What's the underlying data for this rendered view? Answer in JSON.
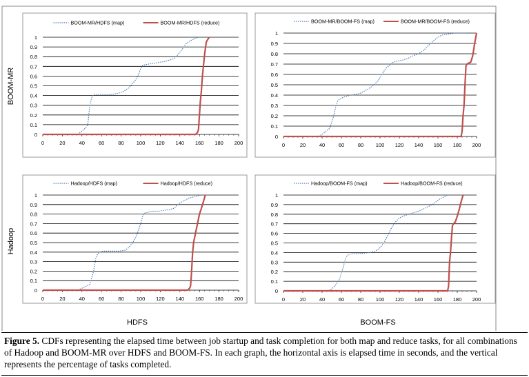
{
  "row_labels": [
    "BOOM-MR",
    "Hadoop"
  ],
  "col_labels": [
    "HDFS",
    "BOOM-FS"
  ],
  "caption": {
    "label": "Figure 5.",
    "text": " CDFs representing the elapsed time between job startup and task completion for both map and reduce tasks, for all combinations of Hadoop and BOOM-MR over HDFS and BOOM-FS. In each graph, the horizontal axis is elapsed time in seconds, and the vertical represents the percentage of tasks completed."
  },
  "colors": {
    "map": "#4f81bd",
    "reduce": "#c0504d",
    "grid": "#000000"
  },
  "chart_data": [
    {
      "type": "line",
      "panel": "top-left",
      "x_ticks": [
        0,
        20,
        40,
        60,
        80,
        100,
        120,
        140,
        160,
        180,
        200
      ],
      "y_ticks": [
        "0",
        "0.1",
        "0.2",
        "0.3",
        "0.4",
        "0.5",
        "0.6",
        "0.7",
        "0.8",
        "0.9",
        "1"
      ],
      "xlim": [
        0,
        200
      ],
      "ylim": [
        0,
        1
      ],
      "series": [
        {
          "name": "BOOM-MR/HDFS (map)",
          "style": "dotted",
          "x": [
            0,
            36,
            38,
            42,
            44,
            46,
            48,
            50,
            52,
            56,
            60,
            70,
            76,
            82,
            88,
            94,
            98,
            100,
            102,
            106,
            112,
            118,
            124,
            128,
            134,
            138,
            142,
            146,
            150,
            154,
            156,
            160
          ],
          "y": [
            0,
            0,
            0.02,
            0.05,
            0.07,
            0.1,
            0.3,
            0.38,
            0.41,
            0.41,
            0.41,
            0.41,
            0.42,
            0.44,
            0.48,
            0.55,
            0.62,
            0.68,
            0.71,
            0.72,
            0.73,
            0.74,
            0.75,
            0.76,
            0.78,
            0.82,
            0.87,
            0.93,
            0.96,
            0.98,
            0.99,
            1.0
          ]
        },
        {
          "name": "BOOM-MR/HDFS (reduce)",
          "style": "solid",
          "x": [
            0,
            156,
            158,
            159,
            160,
            161,
            162,
            163,
            164,
            165,
            166,
            167,
            168,
            170
          ],
          "y": [
            0,
            0,
            0.02,
            0.05,
            0.2,
            0.35,
            0.45,
            0.6,
            0.7,
            0.8,
            0.88,
            0.95,
            0.97,
            1.0
          ]
        }
      ]
    },
    {
      "type": "line",
      "panel": "top-right",
      "x_ticks": [
        0,
        20,
        40,
        60,
        80,
        100,
        120,
        140,
        160,
        180,
        200
      ],
      "y_ticks": [
        "0",
        "0.1",
        "0.2",
        "0.3",
        "0.4",
        "0.5",
        "0.6",
        "0.7",
        "0.8",
        "0.9",
        "1"
      ],
      "xlim": [
        0,
        200
      ],
      "ylim": [
        0,
        1
      ],
      "series": [
        {
          "name": "BOOM-MR/BOOM-FS (map)",
          "style": "dotted",
          "x": [
            0,
            36,
            40,
            44,
            48,
            52,
            54,
            56,
            58,
            62,
            66,
            70,
            76,
            80,
            84,
            88,
            94,
            98,
            102,
            106,
            110,
            114,
            118,
            124,
            130,
            134,
            140,
            146,
            150,
            156,
            160,
            164,
            170,
            178,
            186,
            190
          ],
          "y": [
            0,
            0,
            0.02,
            0.05,
            0.08,
            0.2,
            0.28,
            0.34,
            0.36,
            0.38,
            0.39,
            0.4,
            0.41,
            0.42,
            0.44,
            0.46,
            0.5,
            0.54,
            0.6,
            0.66,
            0.69,
            0.72,
            0.73,
            0.74,
            0.76,
            0.78,
            0.8,
            0.84,
            0.88,
            0.93,
            0.96,
            0.98,
            0.99,
            1.0,
            1.0,
            1.0
          ]
        },
        {
          "name": "BOOM-MR/BOOM-FS (reduce)",
          "style": "solid",
          "x": [
            0,
            184,
            185,
            186,
            187,
            188,
            189,
            190,
            192,
            194,
            196,
            198,
            200
          ],
          "y": [
            0,
            0,
            0.05,
            0.2,
            0.3,
            0.5,
            0.68,
            0.7,
            0.71,
            0.72,
            0.78,
            0.9,
            1.0
          ]
        }
      ]
    },
    {
      "type": "line",
      "panel": "bottom-left",
      "x_ticks": [
        0,
        20,
        40,
        60,
        80,
        100,
        120,
        140,
        160,
        180,
        200
      ],
      "y_ticks": [
        "0",
        "0.1",
        "0.2",
        "0.3",
        "0.4",
        "0.5",
        "0.6",
        "0.7",
        "0.8",
        "0.9",
        "1"
      ],
      "xlim": [
        0,
        200
      ],
      "ylim": [
        0,
        1
      ],
      "series": [
        {
          "name": "Hadoop/HDFS (map)",
          "style": "dotted",
          "x": [
            0,
            36,
            40,
            44,
            48,
            52,
            54,
            56,
            58,
            62,
            70,
            78,
            84,
            88,
            92,
            96,
            100,
            102,
            104,
            108,
            112,
            118,
            124,
            130,
            134,
            138,
            142,
            146,
            150,
            154,
            158,
            162
          ],
          "y": [
            0,
            0,
            0.02,
            0.04,
            0.06,
            0.2,
            0.33,
            0.38,
            0.4,
            0.41,
            0.41,
            0.41,
            0.42,
            0.45,
            0.5,
            0.58,
            0.7,
            0.78,
            0.81,
            0.82,
            0.83,
            0.83,
            0.84,
            0.85,
            0.86,
            0.9,
            0.93,
            0.95,
            0.97,
            0.98,
            0.99,
            1.0
          ]
        },
        {
          "name": "Hadoop/HDFS (reduce)",
          "style": "solid",
          "x": [
            0,
            148,
            150,
            151,
            152,
            153,
            154,
            156,
            158,
            160,
            162,
            164,
            166
          ],
          "y": [
            0,
            0,
            0.02,
            0.05,
            0.2,
            0.4,
            0.5,
            0.6,
            0.7,
            0.8,
            0.86,
            0.93,
            1.0
          ]
        }
      ]
    },
    {
      "type": "line",
      "panel": "bottom-right",
      "x_ticks": [
        0,
        20,
        40,
        60,
        80,
        100,
        120,
        140,
        160,
        180,
        200
      ],
      "y_ticks": [
        "0",
        "0.1",
        "0.2",
        "0.3",
        "0.4",
        "0.5",
        "0.6",
        "0.7",
        "0.8",
        "0.9",
        "1"
      ],
      "xlim": [
        0,
        200
      ],
      "ylim": [
        0,
        1
      ],
      "series": [
        {
          "name": "Hadoop/BOOM-FS (map)",
          "style": "dotted",
          "x": [
            0,
            46,
            50,
            54,
            58,
            62,
            64,
            66,
            68,
            72,
            80,
            90,
            96,
            100,
            104,
            108,
            112,
            116,
            120,
            124,
            130,
            136,
            140,
            146,
            150,
            154,
            158,
            162,
            166,
            170
          ],
          "y": [
            0,
            0,
            0.02,
            0.06,
            0.12,
            0.25,
            0.33,
            0.37,
            0.38,
            0.39,
            0.39,
            0.4,
            0.42,
            0.45,
            0.5,
            0.58,
            0.66,
            0.72,
            0.76,
            0.78,
            0.8,
            0.82,
            0.83,
            0.86,
            0.88,
            0.9,
            0.93,
            0.96,
            0.98,
            1.0
          ]
        },
        {
          "name": "Hadoop/BOOM-FS (reduce)",
          "style": "solid",
          "x": [
            0,
            170,
            171,
            172,
            173,
            174,
            175,
            176,
            178,
            180,
            182,
            184,
            186
          ],
          "y": [
            0,
            0,
            0.05,
            0.3,
            0.4,
            0.55,
            0.68,
            0.7,
            0.72,
            0.78,
            0.85,
            0.93,
            1.0
          ]
        }
      ]
    }
  ]
}
